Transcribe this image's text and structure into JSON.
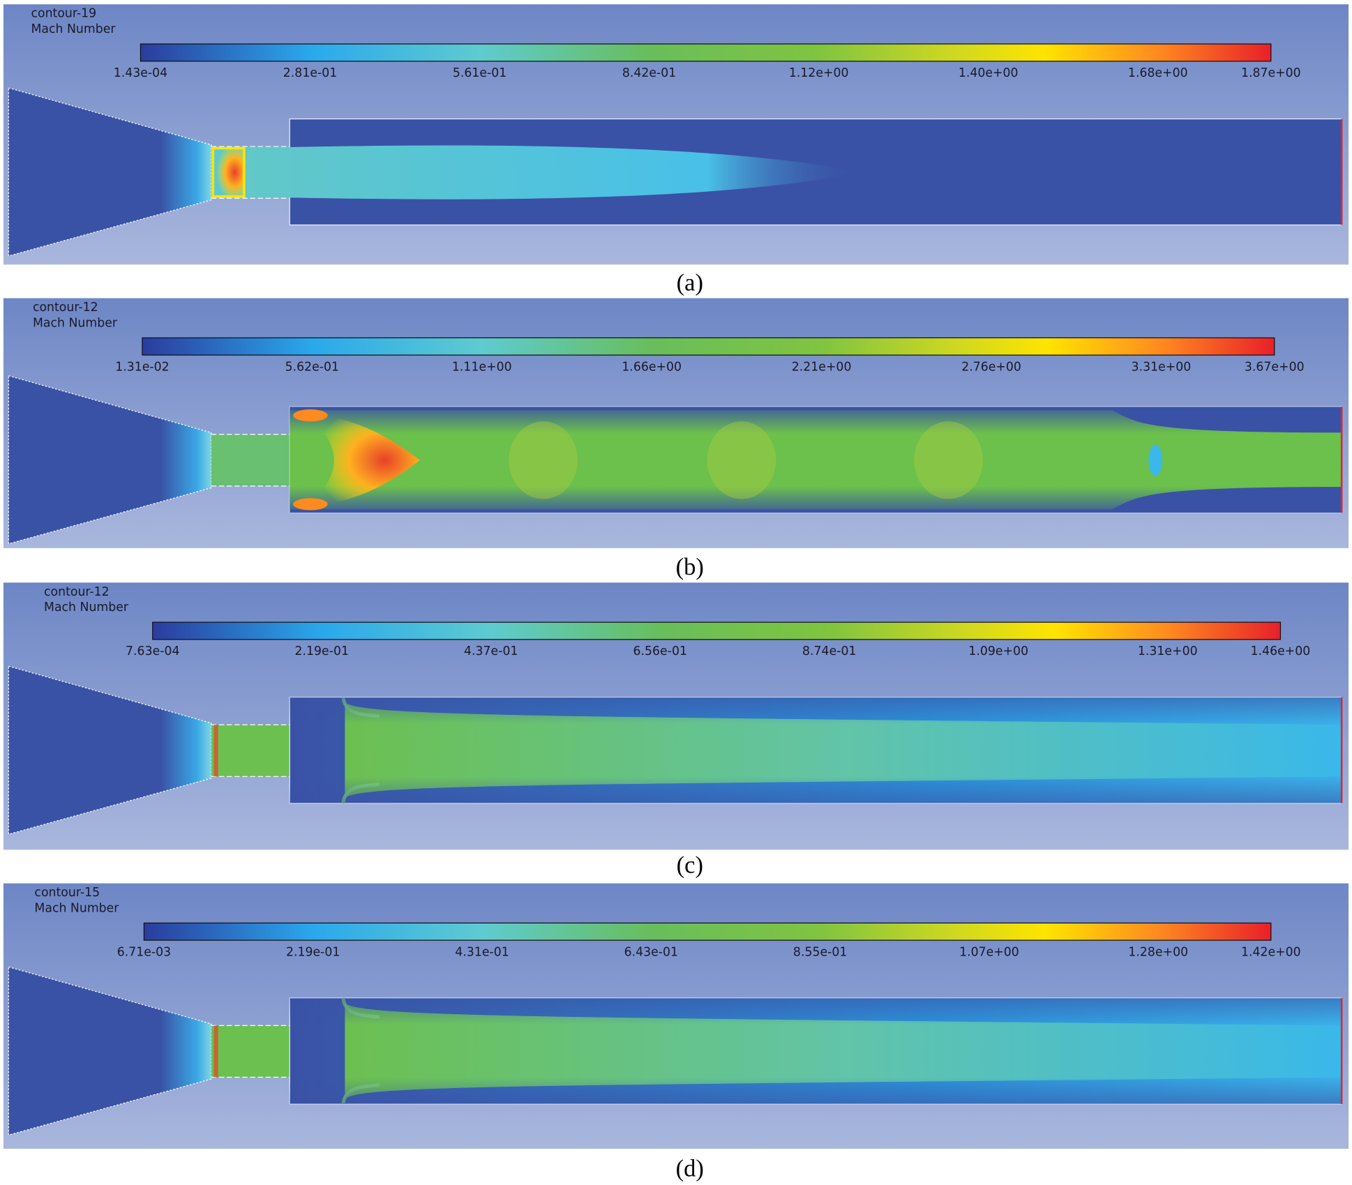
{
  "panels": [
    {
      "contour": "contour-19",
      "quantity": "Mach Number",
      "scale_labels": [
        "1.43e-04",
        "2.81e-01",
        "5.61e-01",
        "8.42e-01",
        "1.12e+00",
        "1.40e+00",
        "1.68e+00",
        "1.87e+00"
      ],
      "caption": "(a)"
    },
    {
      "contour": "contour-12",
      "quantity": "Mach Number",
      "scale_labels": [
        "1.31e-02",
        "5.62e-01",
        "1.11e+00",
        "1.66e+00",
        "2.21e+00",
        "2.76e+00",
        "3.31e+00",
        "3.67e+00"
      ],
      "caption": "(b)"
    },
    {
      "contour": "contour-12",
      "quantity": "Mach Number",
      "scale_labels": [
        "7.63e-04",
        "2.19e-01",
        "4.37e-01",
        "6.56e-01",
        "8.74e-01",
        "1.09e+00",
        "1.31e+00",
        "1.46e+00"
      ],
      "caption": "(c)"
    },
    {
      "contour": "contour-15",
      "quantity": "Mach Number",
      "scale_labels": [
        "6.71e-03",
        "2.19e-01",
        "4.31e-01",
        "6.43e-01",
        "8.55e-01",
        "1.07e+00",
        "1.28e+00",
        "1.42e+00"
      ],
      "caption": "(d)"
    }
  ]
}
